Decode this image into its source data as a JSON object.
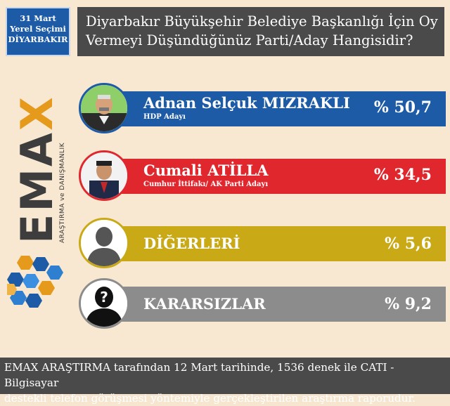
{
  "tag": {
    "line1": "31 Mart",
    "line2": "Yerel Seçimi",
    "line3": "DİYARBAKIR"
  },
  "title": {
    "line1": "Diyarbakır Büyükşehir Belediye Başkanlığı İçin Oy",
    "line2": "Vermeyi Düşündüğünüz Parti/Aday Hangisidir?"
  },
  "brand": {
    "word_main": "EMA",
    "word_x": "X",
    "subtitle": "ARAŞTIRMA ve DANIŞMANLIK"
  },
  "colors": {
    "background": "#f8e8d2",
    "header": "#4a4a4a",
    "blue": "#1d5ba6",
    "red": "#e1272e",
    "gold": "#c9a916",
    "gray": "#8c8c8c",
    "orange": "#e69a1c"
  },
  "chart_data": {
    "type": "bar",
    "unit": "%",
    "categories": [
      "Adnan Selçuk MIZRAKLI",
      "Cumali ATİLLA",
      "DİĞERLERİ",
      "KARARSIZLAR"
    ],
    "values": [
      50.7,
      34.5,
      5.6,
      9.2
    ],
    "rows": [
      {
        "name": "Adnan Selçuk MIZRAKLI",
        "subtitle": "HDP Adayı",
        "value_label": "% 50,7",
        "value": 50.7,
        "color": "#1d5ba6",
        "icon": "candidate-photo-icon"
      },
      {
        "name": "Cumali ATİLLA",
        "subtitle": "Cumhur İttifakı/ AK Parti Adayı",
        "value_label": "% 34,5",
        "value": 34.5,
        "color": "#e1272e",
        "icon": "candidate-photo-icon"
      },
      {
        "name": "DİĞERLERİ",
        "subtitle": "",
        "value_label": "% 5,6",
        "value": 5.6,
        "color": "#c9a916",
        "icon": "person-silhouette-icon"
      },
      {
        "name": "KARARSIZLAR",
        "subtitle": "",
        "value_label": "% 9,2",
        "value": 9.2,
        "color": "#8c8c8c",
        "icon": "question-silhouette-icon"
      }
    ]
  },
  "footer": {
    "line1": "EMAX ARAŞTIRMA tarafından 12 Mart tarihinde, 1536 denek ile CATI - Bilgisayar",
    "line2": "destekli telefon görüşmesi yöntemiyle gerçekleştirilen araştırma raporudur."
  }
}
